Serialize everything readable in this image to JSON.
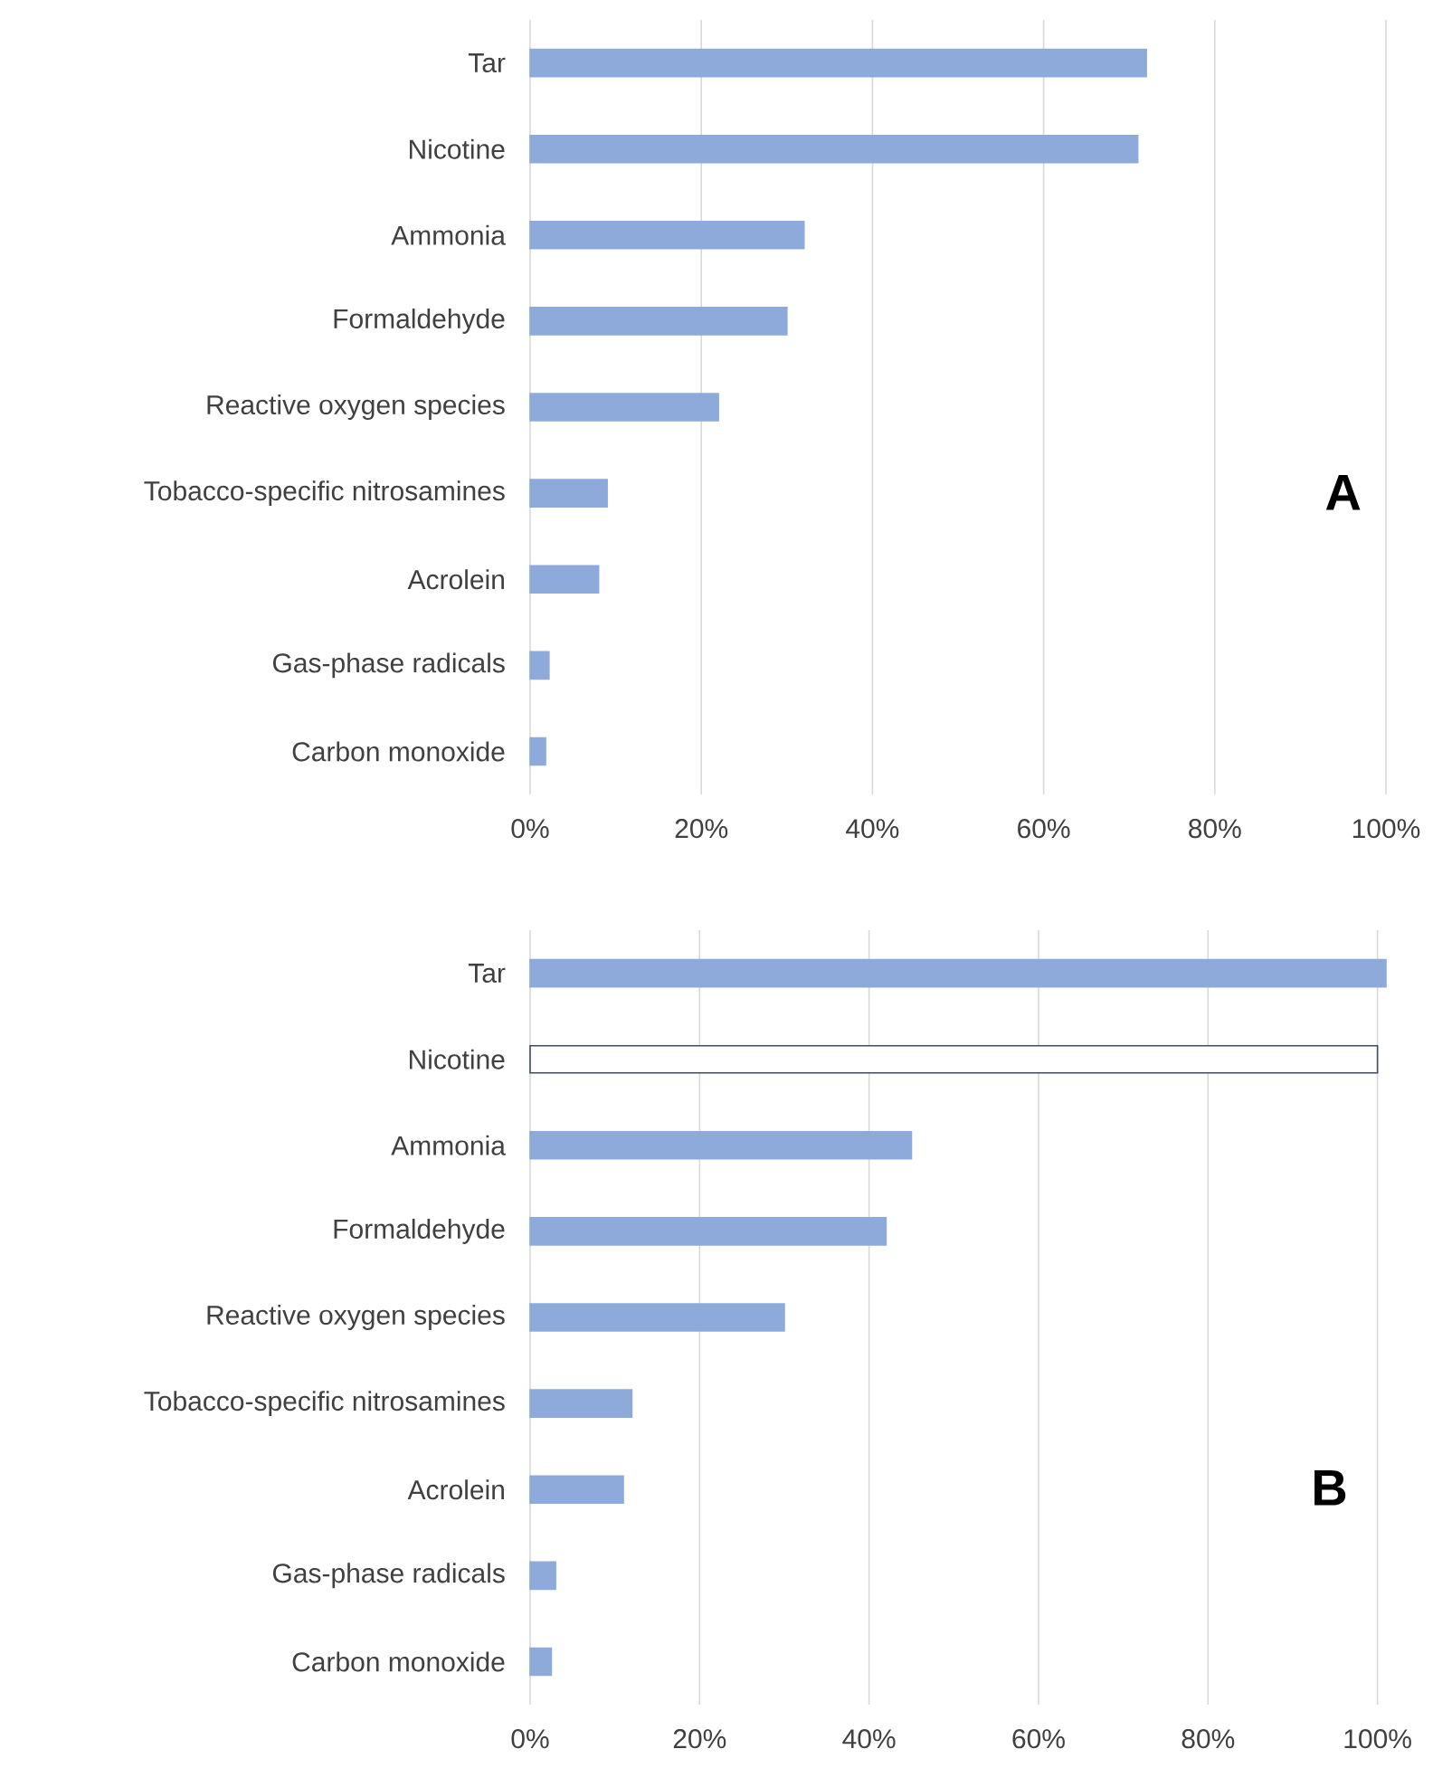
{
  "chart_data": [
    {
      "type": "bar",
      "orientation": "horizontal",
      "categories": [
        "Tar",
        "Nicotine",
        "Ammonia",
        "Formaldehyde",
        "Reactive oxygen species",
        "Tobacco-specific nitrosamines",
        "Acrolein",
        "Gas-phase radicals",
        "Carbon monoxide"
      ],
      "series": [
        {
          "color": "#8eaadb",
          "values": [
            72,
            71,
            32,
            30,
            22,
            9,
            8,
            2.2,
            1.8
          ]
        }
      ],
      "xlim": [
        0,
        100
      ],
      "xticks": [
        {
          "value": 0,
          "label": "0%"
        },
        {
          "value": 20,
          "label": "20%"
        },
        {
          "value": 40,
          "label": "40%"
        },
        {
          "value": 60,
          "label": "60%"
        },
        {
          "value": 80,
          "label": "80%"
        },
        {
          "value": 100,
          "label": "100%"
        }
      ],
      "grid": "x",
      "annotations": [
        "A"
      ]
    },
    {
      "type": "bar",
      "orientation": "horizontal",
      "categories": [
        "Tar",
        "Nicotine",
        "Ammonia",
        "Formaldehyde",
        "Reactive oxygen species",
        "Tobacco-specific nitrosamines",
        "Acrolein",
        "Gas-phase radicals",
        "Carbon monoxide"
      ],
      "series": [
        {
          "color": "#8eaadb",
          "colors": [
            "#8eaadb",
            "#ffffff",
            "#8eaadb",
            "#8eaadb",
            "#8eaadb",
            "#8eaadb",
            "#8eaadb",
            "#8eaadb",
            "#8eaadb"
          ],
          "values": [
            101,
            100,
            45,
            42,
            30,
            12,
            11,
            3.0,
            2.5
          ]
        }
      ],
      "xlim": [
        0,
        101
      ],
      "xticks": [
        {
          "value": 0,
          "label": "0%"
        },
        {
          "value": 20,
          "label": "20%"
        },
        {
          "value": 40,
          "label": "40%"
        },
        {
          "value": 60,
          "label": "60%"
        },
        {
          "value": 80,
          "label": "80%"
        },
        {
          "value": 100,
          "label": "100%"
        }
      ],
      "grid": "x",
      "annotations": [
        "B"
      ]
    }
  ]
}
